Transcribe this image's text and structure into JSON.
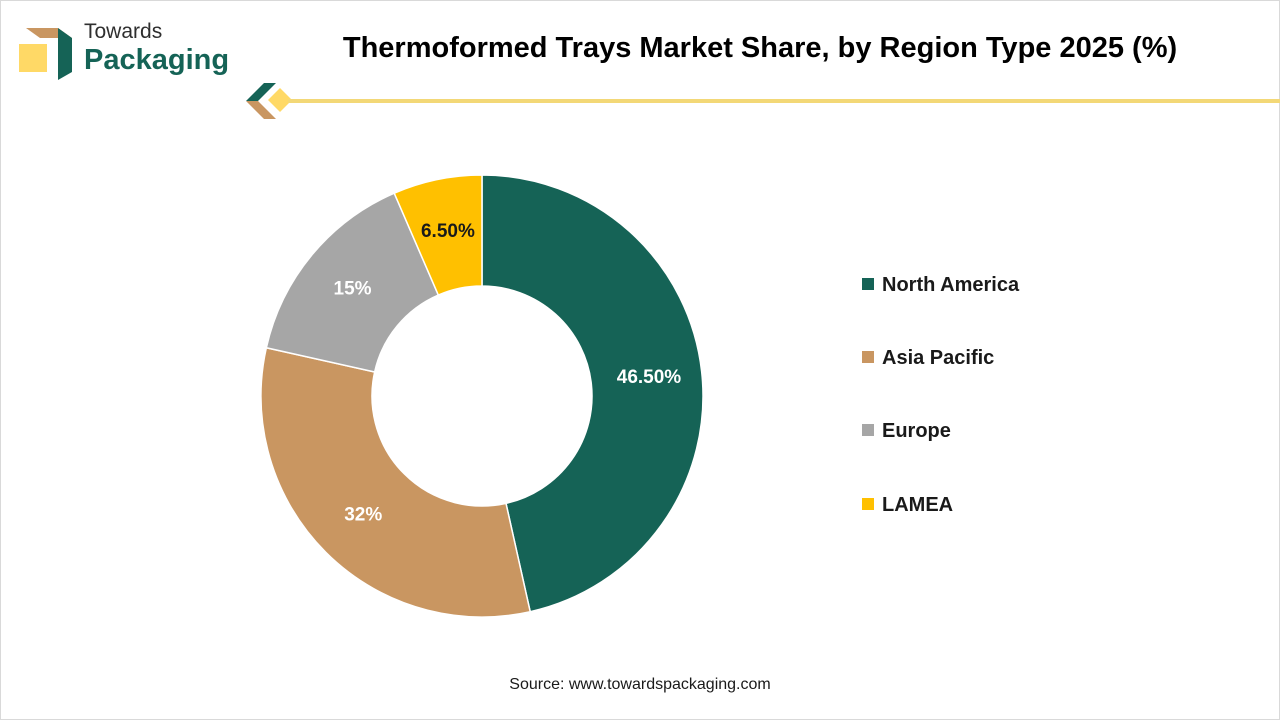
{
  "brand": {
    "line1": "Towards",
    "line2": "Packaging"
  },
  "header": {
    "title": "Thermoformed Trays Market Share, by Region Type 2025 (%)"
  },
  "chart_data": {
    "type": "pie",
    "subtype": "donut",
    "title": "Thermoformed Trays Market Share, by Region Type 2025 (%)",
    "categories": [
      "North America",
      "Asia Pacific",
      "Europe",
      "LAMEA"
    ],
    "values": [
      46.5,
      32,
      15,
      6.5
    ],
    "labels": [
      "46.50%",
      "32%",
      "15%",
      "6.50%"
    ],
    "colors": [
      "#156356",
      "#c99661",
      "#a6a6a6",
      "#ffc000"
    ],
    "label_colors": [
      "#ffffff",
      "#ffffff",
      "#ffffff",
      "#1a1a1a"
    ],
    "legend_position": "right"
  },
  "legend": {
    "items": [
      {
        "label": "North America",
        "color": "#156356"
      },
      {
        "label": "Asia Pacific",
        "color": "#c99661"
      },
      {
        "label": "Europe",
        "color": "#a6a6a6"
      },
      {
        "label": "LAMEA",
        "color": "#ffc000"
      }
    ]
  },
  "footer": {
    "source": "Source: www.towardspackaging.com"
  }
}
